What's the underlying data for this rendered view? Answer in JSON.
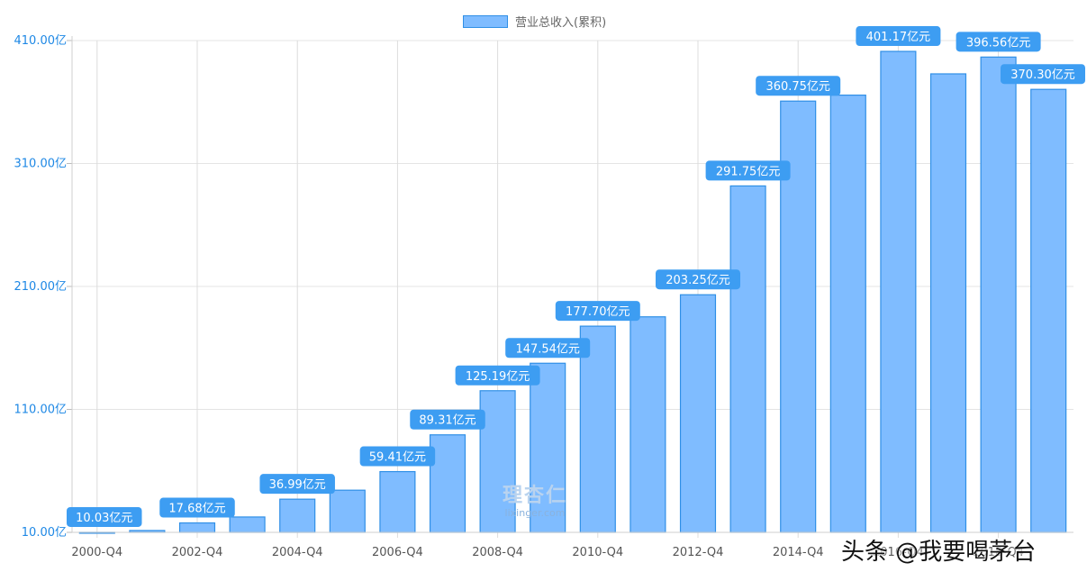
{
  "chart_data": {
    "type": "bar",
    "legend": {
      "label": "营业总收入(累积)",
      "position": "top"
    },
    "colors": {
      "bar_fill": "#7fbcff",
      "bar_stroke": "#2f8fe6",
      "label_bg": "#3d9df2",
      "grid": "#e4e4e4",
      "y_tick_color": "#1e88e5"
    },
    "ylim": [
      10,
      410
    ],
    "y_ticks": [
      "410.00亿",
      "310.00亿",
      "210.00亿",
      "110.00亿",
      "10.00亿"
    ],
    "y_tick_values": [
      410,
      310,
      210,
      110,
      10
    ],
    "x_tick_labels": [
      "2000-Q4",
      "2002-Q4",
      "2004-Q4",
      "2006-Q4",
      "2008-Q4",
      "2010-Q4",
      "2012-Q4",
      "2014-Q4",
      "2016-Q4",
      "2018-Q4"
    ],
    "categories": [
      "2000-Q4",
      "2001-Q4",
      "2002-Q4",
      "2003-Q4",
      "2004-Q4",
      "2005-Q4",
      "2006-Q4",
      "2007-Q4",
      "2008-Q4",
      "2009-Q4",
      "2010-Q4",
      "2011-Q4",
      "2012-Q4",
      "2013-Q4",
      "2014-Q4",
      "2015-Q4",
      "2016-Q4",
      "2017-Q4",
      "2018-Q4",
      "2019-Q4"
    ],
    "values": [
      10.03,
      11.5,
      17.68,
      22.5,
      36.99,
      44.3,
      59.41,
      89.31,
      125.19,
      147.54,
      177.7,
      185.3,
      203.25,
      291.75,
      360.75,
      365.6,
      401.17,
      382.9,
      396.56,
      370.3
    ],
    "data_labels": [
      "10.03亿元",
      null,
      "17.68亿元",
      null,
      "36.99亿元",
      null,
      "59.41亿元",
      "89.31亿元",
      "125.19亿元",
      "147.54亿元",
      "177.70亿元",
      null,
      "203.25亿元",
      "291.75亿元",
      "360.75亿元",
      null,
      "401.17亿元",
      null,
      "396.56亿元",
      "370.30亿元"
    ]
  },
  "watermark": {
    "logo": "理杏仁",
    "url": "lixinger.com"
  },
  "credit": "头条 @我要喝茅台"
}
